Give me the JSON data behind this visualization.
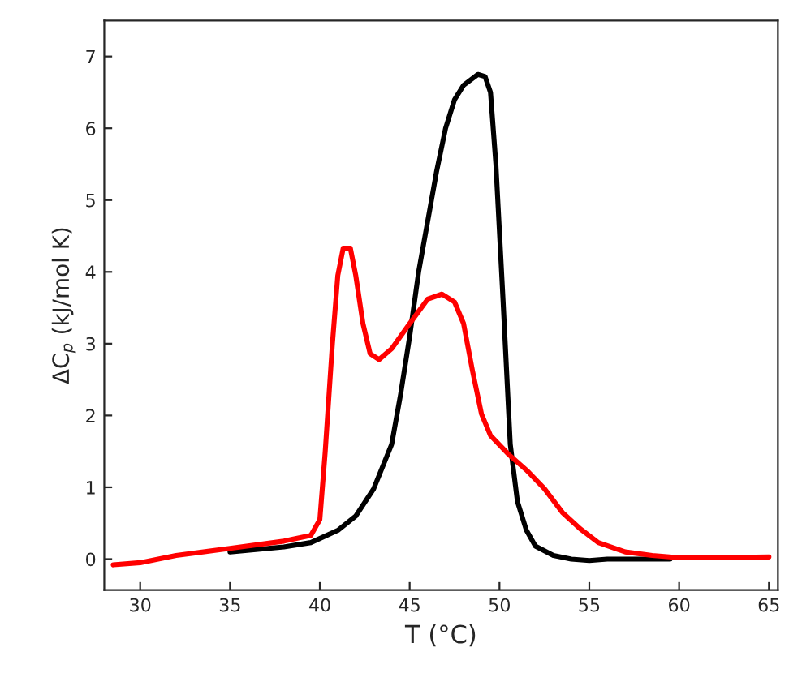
{
  "chart_data": {
    "type": "line",
    "xlabel": "T (°C)",
    "ylabel": "ΔC$_{p}$ (kJ/mol K)",
    "xlim": [
      28,
      65.5
    ],
    "ylim": [
      -0.43,
      7.5
    ],
    "xticks": [
      30,
      35,
      40,
      45,
      50,
      55,
      60,
      65
    ],
    "yticks": [
      0,
      1,
      2,
      3,
      4,
      5,
      6,
      7
    ],
    "grid": false,
    "marker": "none",
    "line_style": "solid",
    "series": [
      {
        "color": "#000000",
        "x": [
          35,
          38,
          39.5,
          41,
          42,
          43,
          44,
          44.5,
          45,
          45.5,
          46,
          46.5,
          47,
          47.5,
          48,
          48.8,
          49.2,
          49.5,
          49.8,
          50.2,
          50.6,
          51,
          51.5,
          52,
          53,
          54,
          55,
          56,
          59.5
        ],
        "values": [
          0.1,
          0.17,
          0.23,
          0.4,
          0.6,
          0.98,
          1.6,
          2.3,
          3.1,
          4.0,
          4.7,
          5.4,
          6.0,
          6.4,
          6.6,
          6.75,
          6.72,
          6.5,
          5.5,
          3.6,
          1.6,
          0.8,
          0.4,
          0.18,
          0.05,
          0.0,
          -0.02,
          0.0,
          0.0
        ]
      },
      {
        "color": "#ff0000",
        "x": [
          28.5,
          30,
          32,
          35,
          38,
          39.5,
          40,
          40.3,
          40.7,
          41,
          41.3,
          41.7,
          42,
          42.4,
          42.8,
          43.3,
          44,
          45,
          46,
          46.8,
          47.5,
          48,
          48.5,
          49,
          49.5,
          50.5,
          51.5,
          52.5,
          53.5,
          54.5,
          55.5,
          57,
          58.5,
          60,
          62,
          65
        ],
        "values": [
          -0.08,
          -0.05,
          0.05,
          0.15,
          0.25,
          0.33,
          0.55,
          1.5,
          3.0,
          3.95,
          4.33,
          4.33,
          3.95,
          3.28,
          2.86,
          2.78,
          2.93,
          3.28,
          3.62,
          3.69,
          3.58,
          3.28,
          2.62,
          2.02,
          1.72,
          1.46,
          1.24,
          0.98,
          0.65,
          0.42,
          0.23,
          0.1,
          0.05,
          0.02,
          0.02,
          0.03
        ]
      }
    ]
  }
}
